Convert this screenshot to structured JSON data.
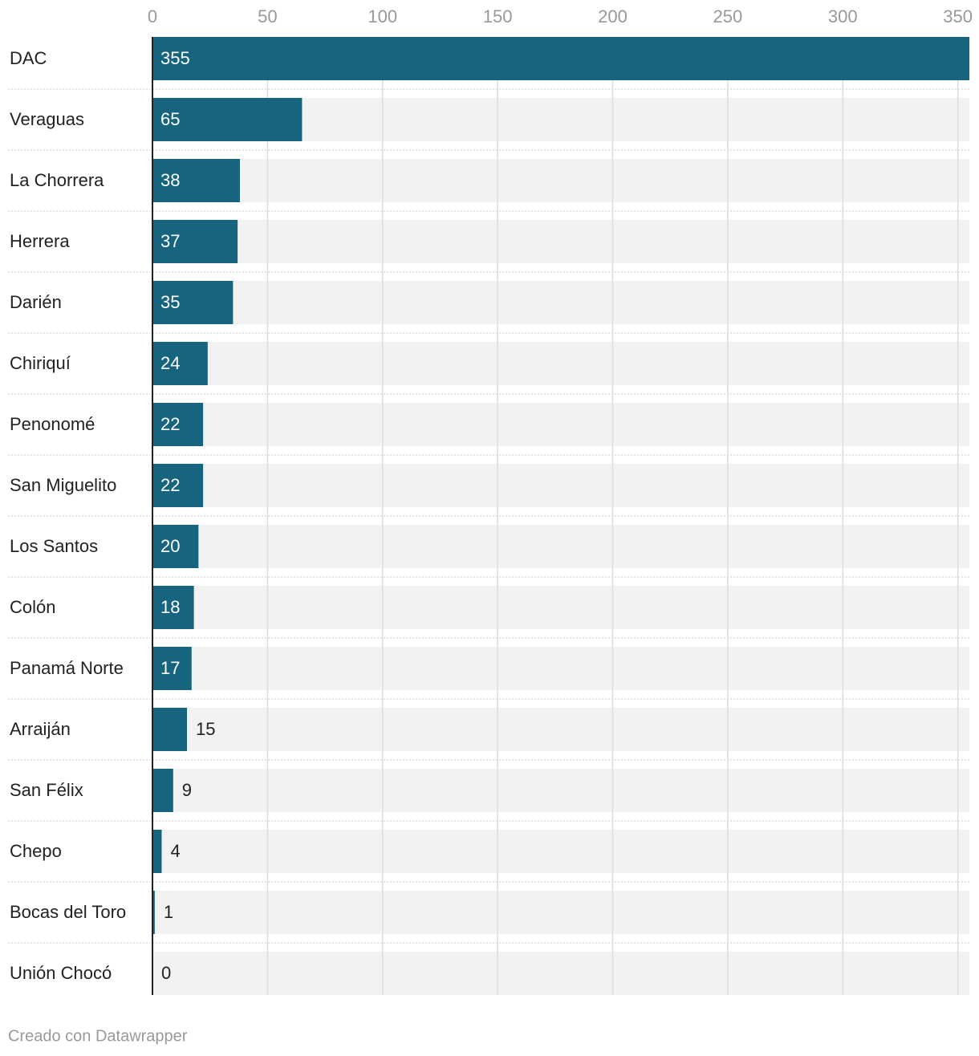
{
  "chart_data": {
    "type": "bar",
    "orientation": "horizontal",
    "categories": [
      "DAC",
      "Veraguas",
      "La Chorrera",
      "Herrera",
      "Darién",
      "Chiriquí",
      "Penonomé",
      "San Miguelito",
      "Los Santos",
      "Colón",
      "Panamá Norte",
      "Arraiján",
      "San Félix",
      "Chepo",
      "Bocas del Toro",
      "Unión Chocó"
    ],
    "values": [
      355,
      65,
      38,
      37,
      35,
      24,
      22,
      22,
      20,
      18,
      17,
      15,
      9,
      4,
      1,
      0
    ],
    "color": "#17647e",
    "xlim": [
      0,
      355
    ],
    "xticks": [
      0,
      50,
      100,
      150,
      200,
      250,
      300,
      350
    ],
    "grid": true
  },
  "footer": "Creado con Datawrapper"
}
